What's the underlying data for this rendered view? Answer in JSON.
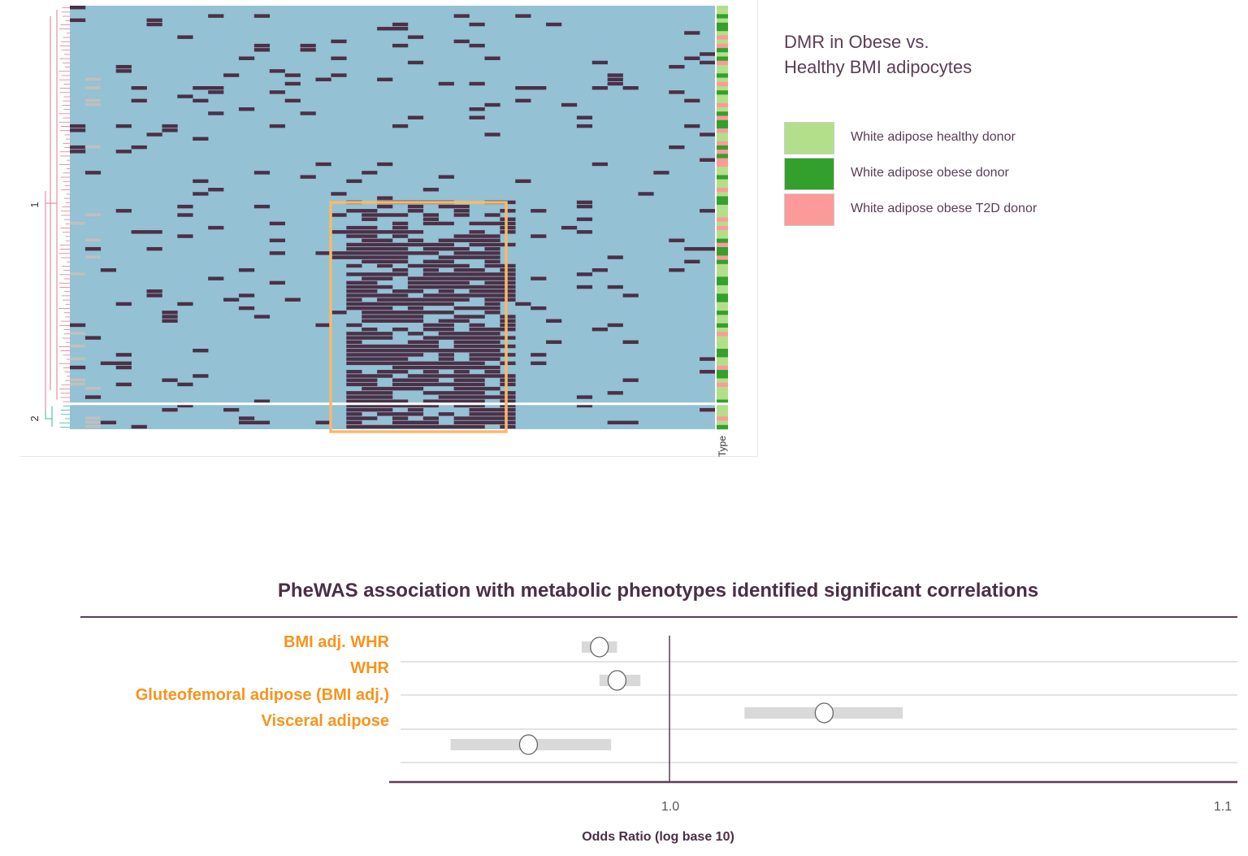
{
  "chart_data": [
    {
      "type": "heatmap",
      "title": "",
      "row_clusters": [
        "1",
        "2"
      ],
      "annotation_label": "Type",
      "colors": {
        "low": "#94c1d3",
        "high": "#4b3048",
        "missing": "#c0c0c0",
        "highlight_box": "#f9b96a",
        "dendrogram_cluster1": "#e07a90",
        "dendrogram_cluster2": "#3fb0a0"
      },
      "legend": {
        "title_line1": "DMR in Obese vs.",
        "title_line2": "Healthy BMI adipocytes",
        "entries": [
          {
            "label": "White adipose healthy donor",
            "color": "#b3df8a"
          },
          {
            "label": "White adipose obese donor",
            "color": "#33a02c"
          },
          {
            "label": "White adipose obese T2D donor",
            "color": "#fb9a99"
          }
        ]
      }
    },
    {
      "type": "scatter",
      "subtype": "forest",
      "title": "PheWAS association with metabolic phenotypes identified significant correlations",
      "xlabel": "Odds Ratio (log base 10)",
      "xscale": "log",
      "xticks": [
        "1.0",
        "1.1"
      ],
      "reference_line": 1.0,
      "rows": [
        {
          "label": "BMI adj. WHR",
          "or": 0.988,
          "ci": [
            0.985,
            0.991
          ]
        },
        {
          "label": "WHR",
          "or": 0.991,
          "ci": [
            0.988,
            0.995
          ]
        },
        {
          "label": "Gluteofemoral adipose (BMI adj.)",
          "or": 1.027,
          "ci": [
            1.013,
            1.041
          ]
        },
        {
          "label": "Visceral adipose",
          "or": 0.976,
          "ci": [
            0.963,
            0.99
          ]
        }
      ],
      "colors": {
        "label": "#f7941d",
        "title": "#4a2f45",
        "ci_bar": "#d9d9d9",
        "axis": "#5a3e55"
      }
    }
  ]
}
